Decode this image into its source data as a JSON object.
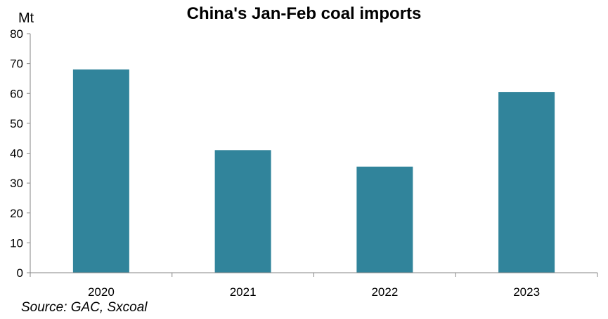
{
  "chart_data": {
    "type": "bar",
    "title": "China's Jan-Feb coal imports",
    "ylabel": "Mt",
    "xlabel": "",
    "categories": [
      "2020",
      "2021",
      "2022",
      "2023"
    ],
    "values": [
      68,
      41,
      35.5,
      60.5
    ],
    "ylim": [
      0,
      80
    ],
    "yticks": [
      0,
      10,
      20,
      30,
      40,
      50,
      60,
      70,
      80
    ],
    "grid": false,
    "legend": "none",
    "bar_color": "#31849b"
  },
  "source": "Source: GAC, Sxcoal"
}
